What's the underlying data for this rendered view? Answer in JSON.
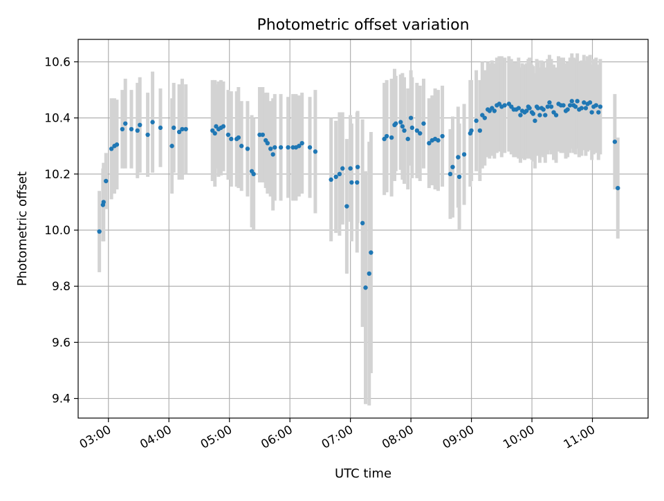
{
  "chart_data": {
    "type": "scatter",
    "title": "Photometric offset variation",
    "xlabel": "UTC time",
    "ylabel": "Photometric offset",
    "x_unit": "hours UTC",
    "xlim": [
      2.5,
      11.92
    ],
    "ylim": [
      9.33,
      10.68
    ],
    "grid": true,
    "legend": "none",
    "x_ticks": [
      {
        "value": 3,
        "label": "03:00"
      },
      {
        "value": 4,
        "label": "04:00"
      },
      {
        "value": 5,
        "label": "05:00"
      },
      {
        "value": 6,
        "label": "06:00"
      },
      {
        "value": 7,
        "label": "07:00"
      },
      {
        "value": 8,
        "label": "08:00"
      },
      {
        "value": 9,
        "label": "09:00"
      },
      {
        "value": 10,
        "label": "10:00"
      },
      {
        "value": 11,
        "label": "11:00"
      }
    ],
    "y_ticks": [
      {
        "value": 9.4,
        "label": "9.4"
      },
      {
        "value": 9.6,
        "label": "9.6"
      },
      {
        "value": 9.8,
        "label": "9.8"
      },
      {
        "value": 10.0,
        "label": "10.0"
      },
      {
        "value": 10.2,
        "label": "10.2"
      },
      {
        "value": 10.4,
        "label": "10.4"
      },
      {
        "value": 10.6,
        "label": "10.6"
      }
    ],
    "colors": {
      "points": "#1f77b4",
      "errorbars": "#d3d3d3",
      "grid": "#b0b0b0"
    },
    "series": [
      {
        "points": [
          [
            2.85,
            9.995,
            0.145
          ],
          [
            2.91,
            10.09,
            0.13
          ],
          [
            2.92,
            10.1,
            0.14
          ],
          [
            2.96,
            10.175,
            0.1
          ],
          [
            3.05,
            10.29,
            0.18
          ],
          [
            3.1,
            10.3,
            0.17
          ],
          [
            3.14,
            10.305,
            0.16
          ],
          [
            3.23,
            10.36,
            0.14
          ],
          [
            3.28,
            10.38,
            0.16
          ],
          [
            3.38,
            10.36,
            0.14
          ],
          [
            3.48,
            10.355,
            0.17
          ],
          [
            3.52,
            10.375,
            0.17
          ],
          [
            3.65,
            10.34,
            0.15
          ],
          [
            3.73,
            10.385,
            0.18
          ],
          [
            3.86,
            10.365,
            0.14
          ],
          [
            4.05,
            10.3,
            0.17
          ],
          [
            4.08,
            10.365,
            0.16
          ],
          [
            4.17,
            10.35,
            0.17
          ],
          [
            4.22,
            10.36,
            0.18
          ],
          [
            4.28,
            10.36,
            0.16
          ],
          [
            4.72,
            10.355,
            0.18
          ],
          [
            4.76,
            10.345,
            0.19
          ],
          [
            4.78,
            10.37,
            0.15
          ],
          [
            4.82,
            10.36,
            0.17
          ],
          [
            4.86,
            10.365,
            0.17
          ],
          [
            4.9,
            10.37,
            0.16
          ],
          [
            4.98,
            10.34,
            0.16
          ],
          [
            5.03,
            10.325,
            0.17
          ],
          [
            5.12,
            10.325,
            0.17
          ],
          [
            5.15,
            10.33,
            0.18
          ],
          [
            5.2,
            10.3,
            0.16
          ],
          [
            5.3,
            10.29,
            0.17
          ],
          [
            5.37,
            10.21,
            0.2
          ],
          [
            5.4,
            10.2,
            0.2
          ],
          [
            5.5,
            10.34,
            0.17
          ],
          [
            5.55,
            10.34,
            0.17
          ],
          [
            5.6,
            10.32,
            0.17
          ],
          [
            5.63,
            10.31,
            0.18
          ],
          [
            5.68,
            10.29,
            0.17
          ],
          [
            5.72,
            10.27,
            0.2
          ],
          [
            5.75,
            10.295,
            0.19
          ],
          [
            5.85,
            10.295,
            0.19
          ],
          [
            5.97,
            10.295,
            0.18
          ],
          [
            6.05,
            10.295,
            0.19
          ],
          [
            6.1,
            10.295,
            0.19
          ],
          [
            6.15,
            10.3,
            0.18
          ],
          [
            6.2,
            10.31,
            0.18
          ],
          [
            6.33,
            10.295,
            0.18
          ],
          [
            6.42,
            10.28,
            0.22
          ],
          [
            6.68,
            10.18,
            0.22
          ],
          [
            6.76,
            10.19,
            0.2
          ],
          [
            6.82,
            10.2,
            0.22
          ],
          [
            6.87,
            10.22,
            0.2
          ],
          [
            6.94,
            10.085,
            0.24
          ],
          [
            7.0,
            10.22,
            0.19
          ],
          [
            7.02,
            10.17,
            0.21
          ],
          [
            7.12,
            10.225,
            0.2
          ],
          [
            7.11,
            10.17,
            0.25
          ],
          [
            7.2,
            10.025,
            0.37
          ],
          [
            7.25,
            9.795,
            0.415
          ],
          [
            7.31,
            9.845,
            0.47
          ],
          [
            7.34,
            9.92,
            0.43
          ],
          [
            7.56,
            10.325,
            0.2
          ],
          [
            7.6,
            10.335,
            0.2
          ],
          [
            7.68,
            10.33,
            0.21
          ],
          [
            7.73,
            10.375,
            0.2
          ],
          [
            7.75,
            10.38,
            0.17
          ],
          [
            7.83,
            10.385,
            0.17
          ],
          [
            7.86,
            10.37,
            0.19
          ],
          [
            7.89,
            10.355,
            0.19
          ],
          [
            7.95,
            10.325,
            0.18
          ],
          [
            8.0,
            10.4,
            0.17
          ],
          [
            8.02,
            10.365,
            0.18
          ],
          [
            8.1,
            10.355,
            0.17
          ],
          [
            8.15,
            10.345,
            0.17
          ],
          [
            8.21,
            10.38,
            0.16
          ],
          [
            8.3,
            10.31,
            0.16
          ],
          [
            8.35,
            10.32,
            0.16
          ],
          [
            8.4,
            10.325,
            0.18
          ],
          [
            8.45,
            10.32,
            0.18
          ],
          [
            8.52,
            10.335,
            0.18
          ],
          [
            8.65,
            10.2,
            0.16
          ],
          [
            8.69,
            10.225,
            0.18
          ],
          [
            8.78,
            10.26,
            0.18
          ],
          [
            8.8,
            10.19,
            0.19
          ],
          [
            8.88,
            10.27,
            0.18
          ],
          [
            8.98,
            10.345,
            0.19
          ],
          [
            9.0,
            10.355,
            0.18
          ],
          [
            9.08,
            10.39,
            0.18
          ],
          [
            9.14,
            10.355,
            0.18
          ],
          [
            9.18,
            10.41,
            0.19
          ],
          [
            9.22,
            10.4,
            0.17
          ],
          [
            9.27,
            10.43,
            0.17
          ],
          [
            9.3,
            10.425,
            0.17
          ],
          [
            9.34,
            10.435,
            0.17
          ],
          [
            9.38,
            10.425,
            0.17
          ],
          [
            9.42,
            10.445,
            0.17
          ],
          [
            9.46,
            10.45,
            0.17
          ],
          [
            9.5,
            10.44,
            0.18
          ],
          [
            9.55,
            10.445,
            0.17
          ],
          [
            9.62,
            10.45,
            0.17
          ],
          [
            9.66,
            10.44,
            0.17
          ],
          [
            9.7,
            10.43,
            0.17
          ],
          [
            9.74,
            10.43,
            0.17
          ],
          [
            9.78,
            10.435,
            0.18
          ],
          [
            9.81,
            10.41,
            0.17
          ],
          [
            9.84,
            10.425,
            0.17
          ],
          [
            9.88,
            10.42,
            0.17
          ],
          [
            9.91,
            10.425,
            0.17
          ],
          [
            9.94,
            10.44,
            0.17
          ],
          [
            9.96,
            10.435,
            0.18
          ],
          [
            10.0,
            10.42,
            0.17
          ],
          [
            10.02,
            10.415,
            0.17
          ],
          [
            10.05,
            10.39,
            0.17
          ],
          [
            10.08,
            10.44,
            0.17
          ],
          [
            10.1,
            10.435,
            0.17
          ],
          [
            10.13,
            10.41,
            0.17
          ],
          [
            10.16,
            10.435,
            0.17
          ],
          [
            10.19,
            10.43,
            0.17
          ],
          [
            10.22,
            10.41,
            0.17
          ],
          [
            10.26,
            10.44,
            0.17
          ],
          [
            10.29,
            10.455,
            0.17
          ],
          [
            10.32,
            10.44,
            0.17
          ],
          [
            10.36,
            10.42,
            0.17
          ],
          [
            10.4,
            10.41,
            0.17
          ],
          [
            10.44,
            10.45,
            0.17
          ],
          [
            10.48,
            10.445,
            0.17
          ],
          [
            10.52,
            10.445,
            0.17
          ],
          [
            10.56,
            10.425,
            0.17
          ],
          [
            10.59,
            10.43,
            0.17
          ],
          [
            10.63,
            10.445,
            0.17
          ],
          [
            10.66,
            10.46,
            0.17
          ],
          [
            10.69,
            10.445,
            0.17
          ],
          [
            10.72,
            10.44,
            0.17
          ],
          [
            10.75,
            10.46,
            0.17
          ],
          [
            10.78,
            10.43,
            0.17
          ],
          [
            10.82,
            10.435,
            0.17
          ],
          [
            10.86,
            10.455,
            0.17
          ],
          [
            10.89,
            10.435,
            0.17
          ],
          [
            10.92,
            10.45,
            0.17
          ],
          [
            10.96,
            10.455,
            0.17
          ],
          [
            10.99,
            10.42,
            0.17
          ],
          [
            11.02,
            10.44,
            0.17
          ],
          [
            11.06,
            10.445,
            0.17
          ],
          [
            11.1,
            10.42,
            0.17
          ],
          [
            11.13,
            10.44,
            0.17
          ],
          [
            11.37,
            10.315,
            0.17
          ],
          [
            11.42,
            10.15,
            0.18
          ]
        ]
      }
    ]
  }
}
